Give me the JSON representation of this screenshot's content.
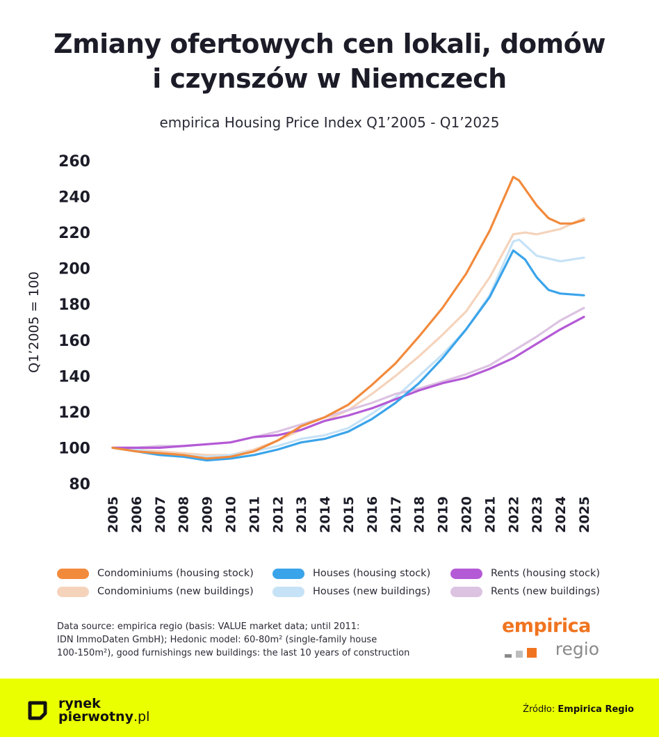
{
  "title_line1": "Zmiany ofertowych cen lokali, domów",
  "title_line2": "i czynszów w Niemczech",
  "subtitle": "empirica Housing Price Index Q1’2005 - Q1’2025",
  "legend": [
    {
      "label": "Condominiums (housing stock)",
      "color": "#f28a3c"
    },
    {
      "label": "Houses (housing stock)",
      "color": "#3aa4ea"
    },
    {
      "label": "Rents (housing stock)",
      "color": "#b45ad6"
    },
    {
      "label": "Condominiums (new buildings)",
      "color": "#f5d3bb"
    },
    {
      "label": "Houses (new buildings)",
      "color": "#c6e2f6"
    },
    {
      "label": "Rents (new buildings)",
      "color": "#dcc3e2"
    }
  ],
  "source_note": [
    "Data source: empirica regio (basis: VALUE market data; until 2011:",
    "IDN ImmoDaten GmbH); Hedonic model: 60-80m² (single-family house",
    "100-150m²), good furnishings new buildings: the last 10 years of construction"
  ],
  "brand": {
    "top": "empirica",
    "bottom": "regio"
  },
  "footer": {
    "logo_line1": "rynek",
    "logo_line2": "pierwotny",
    "logo_tld": ".pl",
    "source_label": "Źródło:",
    "source_value": "Empirica Regio"
  },
  "chart_data": {
    "type": "line",
    "title": "Zmiany ofertowych cen lokali, domów i czynszów w Niemczech",
    "subtitle": "empirica Housing Price Index Q1’2005 - Q1’2025",
    "ylabel": "Q1’2005 = 100",
    "xlabel": "",
    "ylim": [
      80,
      260
    ],
    "yticks": [
      80,
      100,
      120,
      140,
      160,
      180,
      200,
      220,
      240,
      260
    ],
    "xlim": [
      2005,
      2025
    ],
    "xticks": [
      "2005",
      "2006",
      "2007",
      "2008",
      "2009",
      "2010",
      "2011",
      "2012",
      "2013",
      "2014",
      "2015",
      "2016",
      "2017",
      "2018",
      "2019",
      "2020",
      "2021",
      "2022",
      "2023",
      "2024",
      "2025"
    ],
    "grid": false,
    "legend_position": "bottom",
    "series": [
      {
        "name": "Condominiums (new buildings)",
        "color": "#f5d3bb",
        "x": [
          2005,
          2006,
          2007,
          2008,
          2009,
          2010,
          2011,
          2012,
          2013,
          2014,
          2015,
          2016,
          2017,
          2018,
          2019,
          2020,
          2021,
          2022,
          2022.5,
          2023,
          2024,
          2025
        ],
        "y": [
          100,
          99,
          98,
          97,
          96,
          96,
          99,
          104,
          110,
          115,
          121,
          130,
          140,
          151,
          163,
          176,
          195,
          219,
          220,
          219,
          222,
          228
        ]
      },
      {
        "name": "Houses (new buildings)",
        "color": "#c6e2f6",
        "x": [
          2005,
          2006,
          2007,
          2008,
          2009,
          2010,
          2011,
          2012,
          2013,
          2014,
          2015,
          2016,
          2017,
          2018,
          2019,
          2020,
          2021,
          2022,
          2022.25,
          2023,
          2024,
          2025
        ],
        "y": [
          100,
          99,
          97,
          96,
          95,
          96,
          98,
          101,
          105,
          107,
          111,
          119,
          128,
          140,
          152,
          166,
          185,
          215,
          216,
          207,
          204,
          206
        ]
      },
      {
        "name": "Rents (new buildings)",
        "color": "#dcc3e2",
        "x": [
          2005,
          2006,
          2007,
          2008,
          2009,
          2010,
          2011,
          2012,
          2013,
          2014,
          2015,
          2016,
          2017,
          2018,
          2019,
          2020,
          2021,
          2022,
          2023,
          2024,
          2025
        ],
        "y": [
          100,
          100,
          101,
          101,
          102,
          103,
          106,
          109,
          113,
          117,
          121,
          125,
          130,
          133,
          137,
          141,
          146,
          154,
          162,
          171,
          178
        ]
      },
      {
        "name": "Rents (housing stock)",
        "color": "#b45ad6",
        "x": [
          2005,
          2006,
          2007,
          2008,
          2009,
          2010,
          2011,
          2012,
          2013,
          2014,
          2015,
          2016,
          2017,
          2018,
          2019,
          2020,
          2021,
          2022,
          2023,
          2024,
          2025
        ],
        "y": [
          100,
          100,
          100,
          101,
          102,
          103,
          106,
          107,
          110,
          115,
          118,
          122,
          127,
          132,
          136,
          139,
          144,
          150,
          158,
          166,
          173
        ]
      },
      {
        "name": "Houses (housing stock)",
        "color": "#3aa4ea",
        "x": [
          2005,
          2006,
          2007,
          2008,
          2009,
          2010,
          2011,
          2012,
          2013,
          2014,
          2015,
          2016,
          2017,
          2018,
          2019,
          2020,
          2021,
          2022,
          2022.5,
          2023,
          2023.5,
          2024,
          2025
        ],
        "y": [
          100,
          98,
          96,
          95,
          93,
          94,
          96,
          99,
          103,
          105,
          109,
          116,
          125,
          136,
          150,
          166,
          184,
          210,
          205,
          195,
          188,
          186,
          185
        ]
      },
      {
        "name": "Condominiums (housing stock)",
        "color": "#f28a3c",
        "x": [
          2005,
          2006,
          2007,
          2008,
          2009,
          2010,
          2011,
          2012,
          2013,
          2014,
          2015,
          2016,
          2017,
          2018,
          2019,
          2020,
          2021,
          2022,
          2022.25,
          2023,
          2023.5,
          2024,
          2024.5,
          2025
        ],
        "y": [
          100,
          98,
          97,
          96,
          94,
          95,
          98,
          104,
          112,
          117,
          124,
          135,
          147,
          162,
          178,
          197,
          221,
          251,
          249,
          235,
          228,
          225,
          225,
          227
        ]
      }
    ]
  }
}
